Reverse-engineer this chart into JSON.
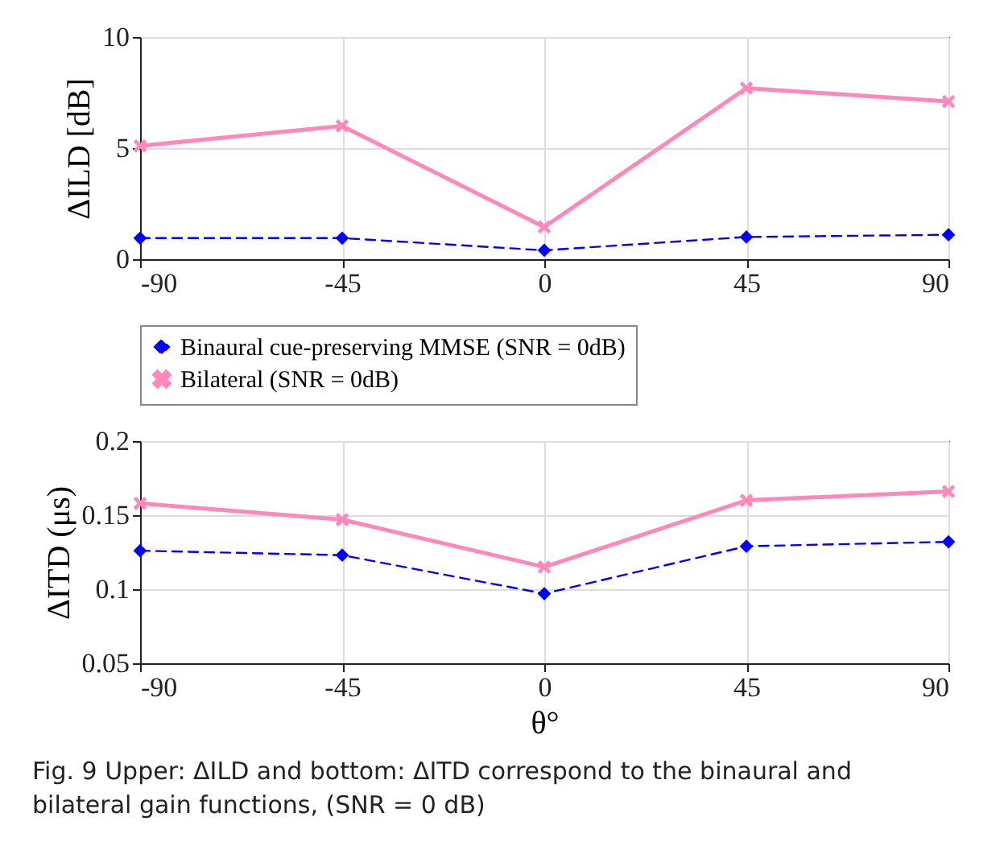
{
  "chart_data": [
    {
      "type": "line",
      "ylabel": "ΔILD [dB]",
      "x": [
        -90,
        -45,
        0,
        45,
        90
      ],
      "xlim": [
        -90,
        90
      ],
      "xticks": [
        -90,
        -45,
        0,
        45,
        90
      ],
      "ylim": [
        0,
        10
      ],
      "yticks": [
        0,
        5,
        10
      ],
      "grid": true,
      "legend": "bottom",
      "series": [
        {
          "name": "Binaural cue-preserving MMSE (SNR = 0dB)",
          "color": "#0000ff",
          "marker": "diamond",
          "line_style": "dashed",
          "values": [
            0.95,
            0.95,
            0.4,
            1.0,
            1.1
          ]
        },
        {
          "name": "Bilateral (SNR = 0dB)",
          "color": "#ff88bb",
          "marker": "cross",
          "line_style": "solid",
          "values": [
            5.1,
            6.0,
            1.45,
            7.7,
            7.1
          ]
        }
      ]
    },
    {
      "type": "line",
      "xlabel": "θ°",
      "ylabel": "ΔITD (μs)",
      "x": [
        -90,
        -45,
        0,
        45,
        90
      ],
      "xlim": [
        -90,
        90
      ],
      "xticks": [
        -90,
        -45,
        0,
        45,
        90
      ],
      "ylim": [
        0.05,
        0.2
      ],
      "yticks": [
        0.05,
        0.1,
        0.15,
        0.2
      ],
      "grid": true,
      "series": [
        {
          "color": "#0000ff",
          "marker": "diamond",
          "line_style": "dashed",
          "values": [
            0.126,
            0.123,
            0.097,
            0.129,
            0.132
          ]
        },
        {
          "color": "#ff88bb",
          "marker": "cross",
          "line_style": "solid",
          "values": [
            0.158,
            0.147,
            0.115,
            0.16,
            0.166
          ]
        }
      ],
      "annotations": [
        "Fig. 9 Upper: ΔILD and bottom: ΔITD correspond to the binaural and bilateral gain functions, (SNR = 0 dB)"
      ]
    }
  ]
}
